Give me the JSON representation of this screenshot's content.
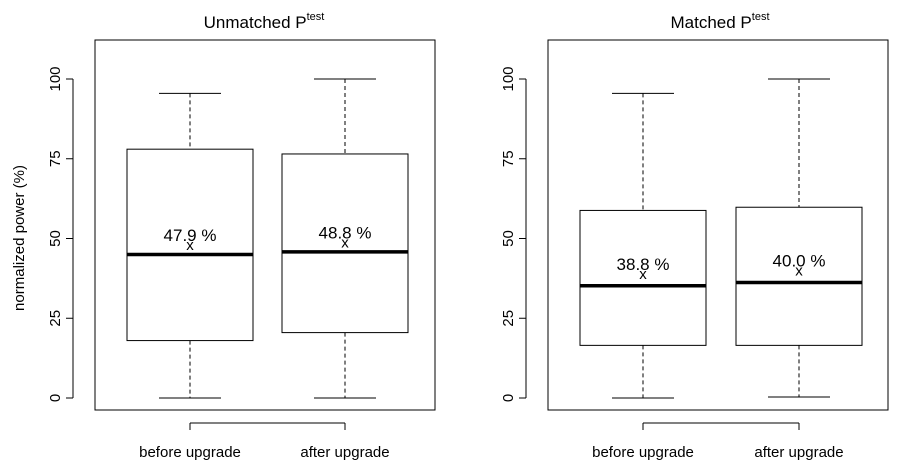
{
  "ylabel": "normalized power (%)",
  "chart_data": [
    {
      "type": "boxplot",
      "title": "Unmatched P",
      "title_sup": "test",
      "ylim": [
        0,
        100
      ],
      "yticks": [
        0,
        25,
        50,
        75,
        100
      ],
      "categories": [
        "before upgrade",
        "after upgrade"
      ],
      "boxes": [
        {
          "category": "before upgrade",
          "min": 0,
          "q1": 18,
          "median": 45,
          "q3": 78,
          "max": 95.5,
          "mean": 47.9,
          "mean_label": "47.9 %"
        },
        {
          "category": "after upgrade",
          "min": 0,
          "q1": 20.5,
          "median": 45.8,
          "q3": 76.5,
          "max": 100,
          "mean": 48.8,
          "mean_label": "48.8 %"
        }
      ]
    },
    {
      "type": "boxplot",
      "title": "Matched P",
      "title_sup": "test",
      "ylim": [
        0,
        100
      ],
      "yticks": [
        0,
        25,
        50,
        75,
        100
      ],
      "categories": [
        "before upgrade",
        "after upgrade"
      ],
      "boxes": [
        {
          "category": "before upgrade",
          "min": 0,
          "q1": 16.5,
          "median": 35.2,
          "q3": 58.8,
          "max": 95.5,
          "mean": 38.8,
          "mean_label": "38.8 %"
        },
        {
          "category": "after upgrade",
          "min": 0.3,
          "q1": 16.5,
          "median": 36.2,
          "q3": 59.8,
          "max": 100,
          "mean": 40.0,
          "mean_label": "40.0 %"
        }
      ]
    }
  ]
}
